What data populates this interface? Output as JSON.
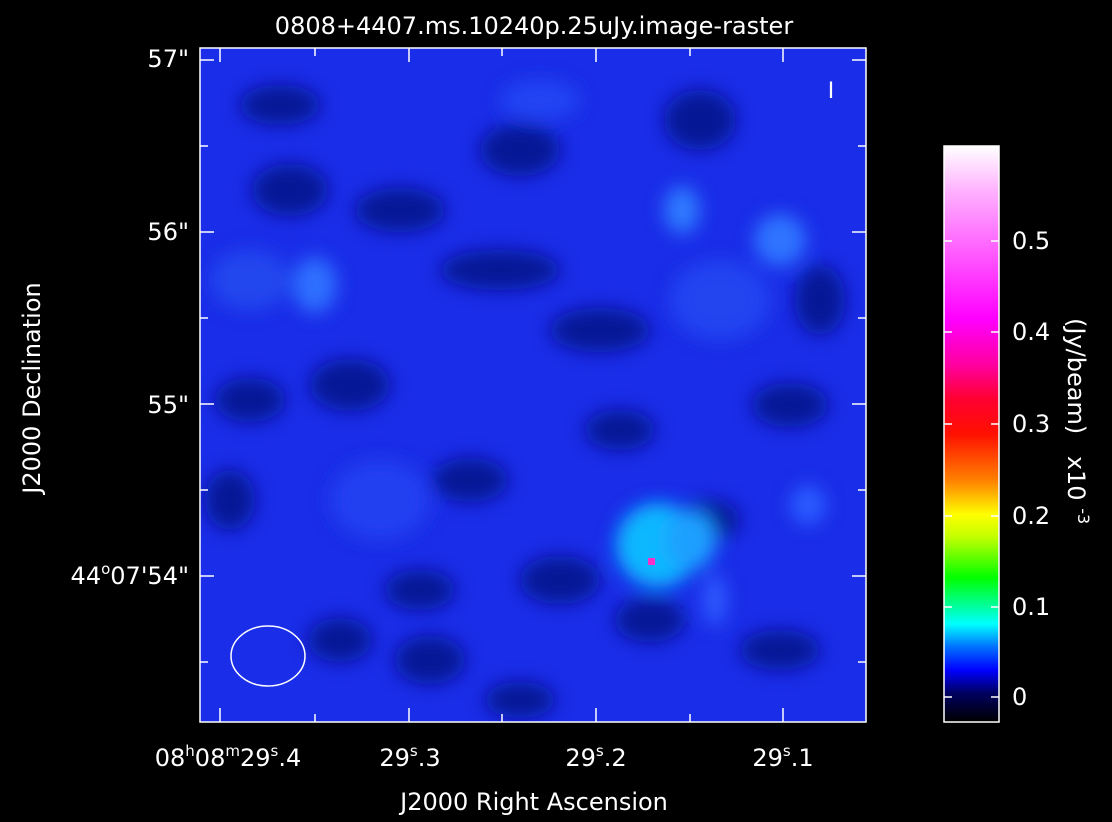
{
  "title": "0808+4407.ms.10240p.25uJy.image-raster",
  "x_axis": {
    "label": "J2000 Right Ascension",
    "ticks": [
      {
        "text": "08h08m29s.4",
        "parts": [
          [
            "08",
            ""
          ],
          [
            "h",
            "sup"
          ],
          [
            "08",
            ""
          ],
          [
            "m",
            "sup"
          ],
          [
            "29",
            ""
          ],
          [
            "s",
            "sup"
          ],
          [
            ".4",
            ""
          ]
        ]
      },
      {
        "text": "29s.3",
        "parts": [
          [
            "29",
            ""
          ],
          [
            "s",
            "sup"
          ],
          [
            ".3",
            ""
          ]
        ]
      },
      {
        "text": "29s.2",
        "parts": [
          [
            "29",
            ""
          ],
          [
            "s",
            "sup"
          ],
          [
            ".2",
            ""
          ]
        ]
      },
      {
        "text": "29s.1",
        "parts": [
          [
            "29",
            ""
          ],
          [
            "s",
            "sup"
          ],
          [
            ".1",
            ""
          ]
        ]
      }
    ]
  },
  "y_axis": {
    "label": "J2000 Declination",
    "ticks": [
      {
        "text": "44°07'54\"",
        "parts": [
          [
            "44",
            ""
          ],
          [
            "o",
            "sup"
          ],
          [
            "07'54\"",
            ""
          ]
        ]
      },
      {
        "text": "55\"",
        "parts": [
          [
            "55\"",
            ""
          ]
        ]
      },
      {
        "text": "56\"",
        "parts": [
          [
            "56\"",
            ""
          ]
        ]
      },
      {
        "text": "57\"",
        "parts": [
          [
            "57\"",
            ""
          ]
        ]
      }
    ]
  },
  "stokes_label": "I",
  "colorbar": {
    "label": "(Jy/beam)",
    "multiplier": "x10",
    "exponent": "-3",
    "tick_labels": [
      "0",
      "0.1",
      "0.2",
      "0.3",
      "0.4",
      "0.5"
    ],
    "range": [
      -0.03,
      0.6
    ]
  },
  "image": {
    "background_color": "#1a2de8",
    "colormap": [
      "#ffffff",
      "#ff80ff",
      "#ff00ff",
      "#ff0040",
      "#ff2000",
      "#ff8000",
      "#ffff00",
      "#00ff00",
      "#00ffff",
      "#0080ff",
      "#0000ff",
      "#000080",
      "#000000"
    ],
    "source_peak_jy_per_beam": 0.00045
  }
}
